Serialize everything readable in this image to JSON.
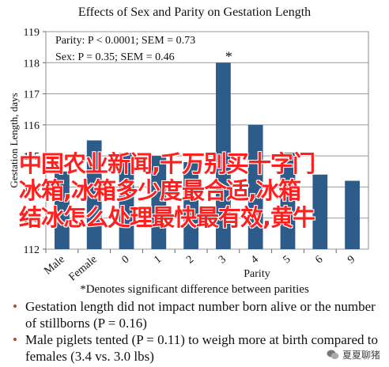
{
  "chart_data": {
    "type": "bar",
    "title": "Effects of Sex and Parity on Gestation Length",
    "ylabel": "Gestation Length, days",
    "xlabel": "Parity",
    "categories": [
      "Male",
      "Female",
      "0",
      "1",
      "2",
      "3",
      "4",
      "5",
      "6",
      "9"
    ],
    "values": [
      114.5,
      115.5,
      115.1,
      115.0,
      114.8,
      118.0,
      116.0,
      115.1,
      114.4,
      114.2
    ],
    "ylim": [
      112,
      119
    ],
    "yticks": [
      112,
      113,
      114,
      115,
      116,
      117,
      118,
      119
    ],
    "asterisk_label": "*",
    "bar_color": "#2e5c8a",
    "grid": true,
    "stats": [
      "Parity: P < 0.0001; SEM = 0.73",
      "Sex: P = 0.35; SEM = 0.46"
    ]
  },
  "overlay_text": [
    "中国农业新闻,千万别买十字门",
    "冰箱,冰箱多少度最合适,冰箱",
    "结冰怎么处理最快最有效,黄牛"
  ],
  "note": "*Denotes significant difference between parities",
  "bullets": [
    "Gestation length did not impact number born alive or the number of stillborns (P = 0.16)",
    "Male piglets tented (P = 0.11) to weigh more at birth compared to females (3.4 vs. 3.0 lbs)"
  ],
  "watermark": "夏夏聊猪"
}
